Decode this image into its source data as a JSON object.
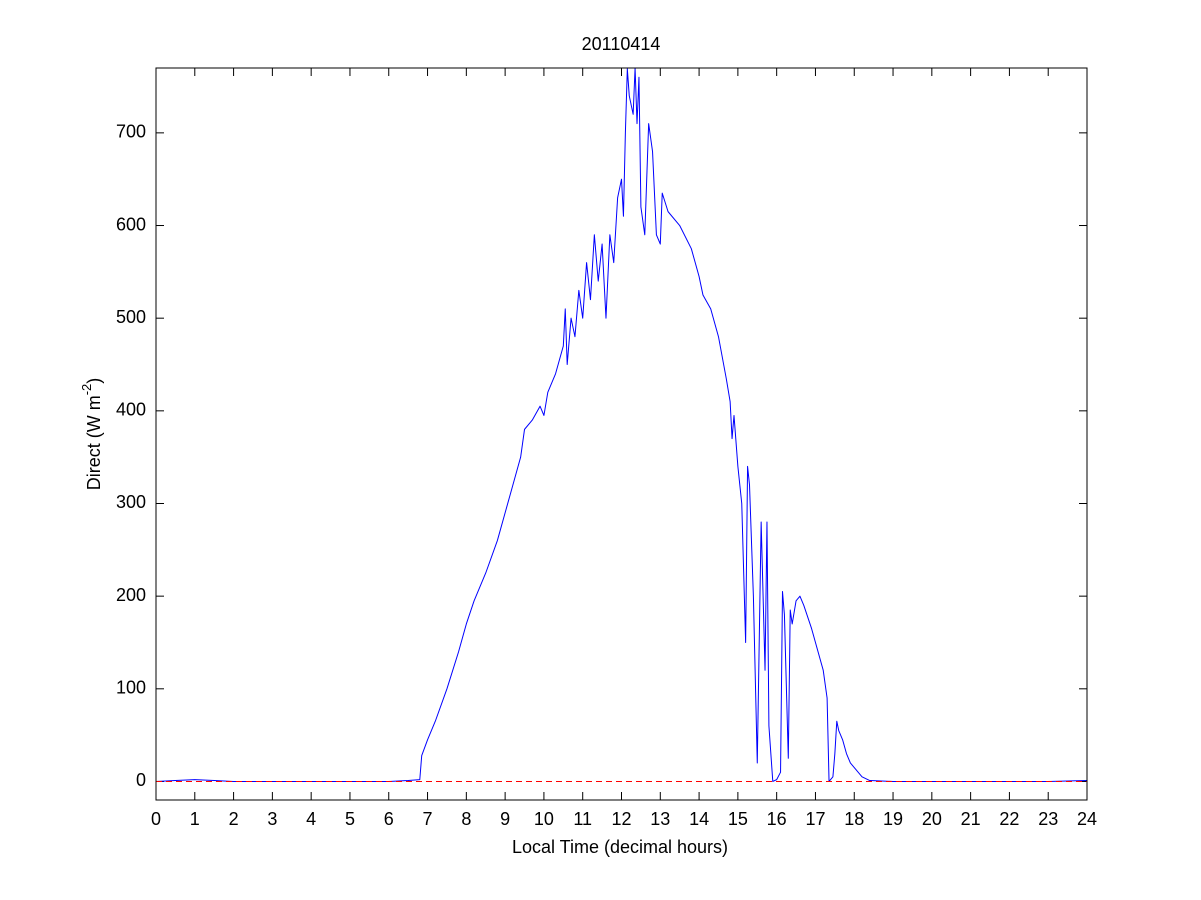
{
  "chart_data": {
    "type": "line",
    "title": "20110414",
    "xlabel": "Local Time (decimal hours)",
    "ylabel": {
      "text": "Direct (W m",
      "superscript": "-2",
      "suffix": ")"
    },
    "xlim": [
      0,
      24
    ],
    "ylim": [
      -20,
      770
    ],
    "xticks": [
      0,
      1,
      2,
      3,
      4,
      5,
      6,
      7,
      8,
      9,
      10,
      11,
      12,
      13,
      14,
      15,
      16,
      17,
      18,
      19,
      20,
      21,
      22,
      23,
      24
    ],
    "yticks": [
      0,
      100,
      200,
      300,
      400,
      500,
      600,
      700
    ],
    "series": [
      {
        "color": "#0000ff",
        "dashed": false,
        "x": [
          0,
          0.5,
          1,
          1.5,
          2,
          3,
          4,
          5,
          6,
          6.5,
          6.8,
          6.85,
          7,
          7.2,
          7.5,
          7.8,
          8,
          8.2,
          8.5,
          8.8,
          9,
          9.2,
          9.4,
          9.5,
          9.7,
          9.9,
          10,
          10.1,
          10.3,
          10.5,
          10.55,
          10.6,
          10.7,
          10.8,
          10.9,
          11,
          11.1,
          11.2,
          11.3,
          11.4,
          11.5,
          11.6,
          11.7,
          11.8,
          11.9,
          12,
          12.05,
          12.1,
          12.15,
          12.2,
          12.3,
          12.35,
          12.4,
          12.45,
          12.5,
          12.6,
          12.7,
          12.8,
          12.9,
          13,
          13.05,
          13.2,
          13.5,
          13.8,
          14,
          14.1,
          14.3,
          14.5,
          14.7,
          14.8,
          14.85,
          14.9,
          15,
          15.1,
          15.2,
          15.25,
          15.3,
          15.4,
          15.5,
          15.6,
          15.7,
          15.75,
          15.8,
          15.9,
          16,
          16.1,
          16.15,
          16.2,
          16.3,
          16.35,
          16.4,
          16.5,
          16.6,
          16.7,
          16.9,
          17,
          17.2,
          17.3,
          17.35,
          17.45,
          17.5,
          17.55,
          17.6,
          17.7,
          17.8,
          17.9,
          18,
          18.2,
          18.4,
          19,
          20,
          21,
          22,
          23,
          24
        ],
        "values": [
          0,
          1,
          2,
          1,
          0,
          0,
          0,
          0,
          0,
          1,
          2,
          28,
          45,
          65,
          100,
          140,
          170,
          195,
          225,
          260,
          290,
          320,
          350,
          380,
          390,
          405,
          395,
          420,
          440,
          470,
          510,
          450,
          500,
          480,
          530,
          500,
          560,
          520,
          590,
          540,
          580,
          500,
          590,
          560,
          630,
          650,
          610,
          700,
          769,
          740,
          720,
          770,
          710,
          760,
          620,
          590,
          710,
          680,
          590,
          580,
          635,
          615,
          600,
          575,
          545,
          525,
          510,
          480,
          435,
          410,
          370,
          395,
          340,
          300,
          150,
          340,
          320,
          200,
          20,
          280,
          120,
          280,
          60,
          0,
          2,
          10,
          205,
          180,
          25,
          185,
          170,
          195,
          200,
          190,
          165,
          150,
          120,
          90,
          0,
          5,
          30,
          65,
          55,
          45,
          30,
          20,
          15,
          5,
          1,
          0,
          0,
          0,
          0,
          0,
          1
        ]
      },
      {
        "color": "#ff0000",
        "dashed": true,
        "x": [
          0,
          24
        ],
        "values": [
          0,
          0
        ]
      }
    ]
  }
}
